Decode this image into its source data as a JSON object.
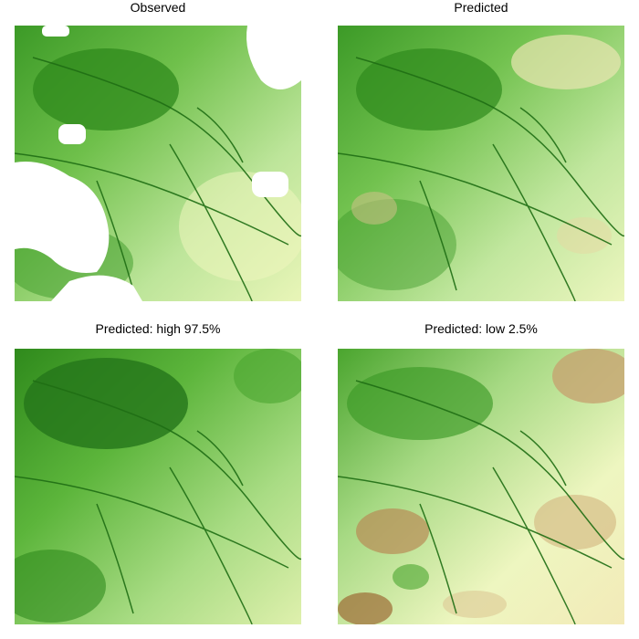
{
  "panels": [
    {
      "title": "Observed"
    },
    {
      "title": "Predicted"
    },
    {
      "title": "Predicted: high 97.5%"
    },
    {
      "title": "Predicted: low 2.5%"
    }
  ],
  "palette": {
    "dark_green": "#1f6e14",
    "green": "#4aa52e",
    "light_green": "#9ad36f",
    "pale_yellow": "#f4f7c4",
    "tan": "#d2ba86",
    "brown": "#9c6b35",
    "missing": "#ffffff"
  }
}
